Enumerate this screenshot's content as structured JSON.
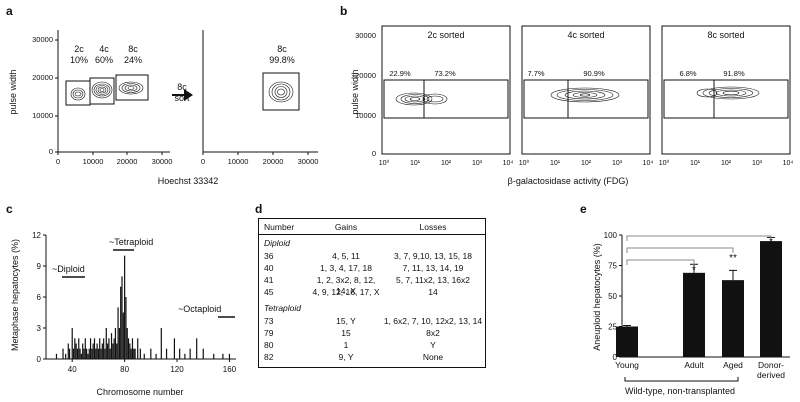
{
  "panel_labels": {
    "a": "a",
    "b": "b",
    "c": "c",
    "d": "d",
    "e": "e"
  },
  "panel_a": {
    "ylabel": "pulse width",
    "xlabel": "Hoechst 33342",
    "y_ticks": [
      "30000",
      "20000",
      "10000",
      "0"
    ],
    "x_ticks": [
      "0",
      "10000",
      "20000",
      "30000"
    ],
    "x_ticks_right": [
      "0",
      "10000",
      "20000",
      "30000"
    ],
    "gates": [
      {
        "name": "2c",
        "pct": "10%"
      },
      {
        "name": "4c",
        "pct": "60%"
      },
      {
        "name": "8c",
        "pct": "24%"
      }
    ],
    "sort_label_1": "8c",
    "sort_label_2": "sort",
    "sorted_gate": {
      "name": "8c",
      "pct": "99.8%"
    }
  },
  "panel_b": {
    "ylabel": "pulse width",
    "xlabel": "β-galactosidase activity (FDG)",
    "y_ticks": [
      "30000",
      "20000",
      "10000",
      "0"
    ],
    "x_ticks": [
      "10⁰",
      "10¹",
      "10²",
      "10³",
      "10⁴"
    ],
    "plots": [
      {
        "title": "2c sorted",
        "left_pct": "22.9%",
        "right_pct": "73.2%"
      },
      {
        "title": "4c sorted",
        "left_pct": "7.7%",
        "right_pct": "90.9%"
      },
      {
        "title": "8c sorted",
        "left_pct": "6.8%",
        "right_pct": "91.8%"
      }
    ]
  },
  "panel_c": {
    "ylabel": "Metaphase hepatocytes (%)",
    "xlabel": "Chromosome number",
    "y_ticks": [
      "12",
      "9",
      "6",
      "3",
      "0"
    ],
    "x_ticks": [
      "40",
      "80",
      "120",
      "160"
    ],
    "annotations": [
      "~Tetraploid",
      "~Diploid",
      "~Octaploid"
    ]
  },
  "panel_d": {
    "headers": [
      "Number",
      "Gains",
      "Losses"
    ],
    "sections": [
      {
        "title": "Diploid",
        "rows": [
          [
            "36",
            "4, 5, 11",
            "3, 7, 9,10, 13, 15, 18"
          ],
          [
            "40",
            "1, 3, 4, 17, 18",
            "7, 11, 13, 14, 19"
          ],
          [
            "41",
            "1, 2, 3x2, 8, 12, 14, X",
            "5, 7, 11x2, 13, 16x2"
          ],
          [
            "45",
            "4, 9, 12, 16, 17, X",
            "14"
          ]
        ]
      },
      {
        "title": "Tetraploid",
        "rows": [
          [
            "73",
            "15, Y",
            "1, 6x2, 7, 10, 12x2, 13, 14"
          ],
          [
            "79",
            "15",
            "8x2"
          ],
          [
            "80",
            "1",
            "Y"
          ],
          [
            "82",
            "9, Y",
            "None"
          ]
        ]
      }
    ]
  },
  "panel_e": {
    "ylabel": "Aneuploid hepatocytes (%)",
    "y_ticks": [
      "100",
      "75",
      "50",
      "25",
      "0"
    ],
    "group_label": "Wild-type, non-transplanted",
    "significance": [
      "*",
      "**",
      "*"
    ]
  },
  "chart_data": [
    {
      "type": "bar",
      "panel": "c",
      "xlabel": "Chromosome number",
      "ylabel": "Metaphase hepatocytes (%)",
      "xlim": [
        20,
        165
      ],
      "ylim": [
        0,
        12
      ],
      "x": [
        28,
        33,
        35,
        37,
        38,
        40,
        41,
        42,
        43,
        44,
        45,
        46,
        47,
        48,
        49,
        50,
        51,
        52,
        53,
        54,
        55,
        56,
        57,
        58,
        59,
        60,
        61,
        62,
        63,
        64,
        65,
        66,
        67,
        68,
        69,
        70,
        71,
        72,
        73,
        74,
        75,
        76,
        77,
        78,
        79,
        80,
        81,
        82,
        83,
        84,
        85,
        86,
        87,
        88,
        90,
        92,
        95,
        100,
        104,
        108,
        112,
        118,
        122,
        126,
        130,
        135,
        140,
        148,
        155,
        160
      ],
      "values": [
        0.5,
        1,
        0.5,
        1.5,
        1,
        3,
        1,
        2,
        1.5,
        1,
        2,
        1,
        0.5,
        1.5,
        1,
        2,
        1,
        0.5,
        1,
        2,
        1,
        1.5,
        2,
        1,
        1.5,
        1,
        2,
        1,
        1.5,
        2,
        1,
        3,
        1.5,
        2,
        1,
        2.5,
        1.5,
        2,
        3,
        1.5,
        5,
        3,
        7,
        8,
        4.5,
        10,
        6,
        3,
        2,
        1.5,
        1,
        2,
        1,
        1,
        2,
        1,
        0.5,
        1,
        0.5,
        3,
        1,
        2,
        1,
        0.5,
        1,
        2,
        1,
        0.5,
        0.5,
        0.5
      ]
    },
    {
      "type": "bar",
      "panel": "e",
      "categories": [
        "Young",
        "Adult",
        "Aged",
        "Donor-derived"
      ],
      "values": [
        25,
        69,
        63,
        95
      ],
      "errors": [
        0.8,
        7,
        8,
        3
      ],
      "ylabel": "Aneuploid hepatocytes (%)",
      "ylim": [
        0,
        100
      ]
    }
  ]
}
